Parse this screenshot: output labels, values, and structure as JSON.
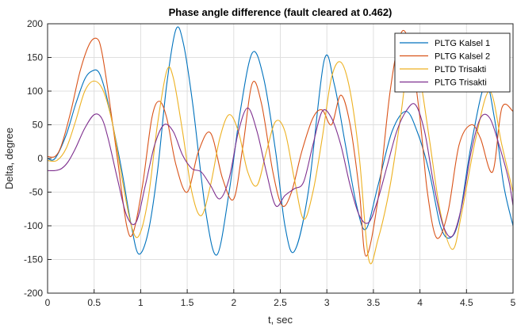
{
  "chart_data": {
    "type": "line",
    "title": "Phase angle difference (fault cleared at 0.462)",
    "xlabel": "t, sec",
    "ylabel": "Delta, degree",
    "xlim": [
      0,
      5
    ],
    "ylim": [
      -200,
      200
    ],
    "xticks": [
      0,
      0.5,
      1,
      1.5,
      2,
      2.5,
      3,
      3.5,
      4,
      4.5,
      5
    ],
    "xtick_labels": [
      "0",
      "0.5",
      "1",
      "1.5",
      "2",
      "2.5",
      "3",
      "3.5",
      "4",
      "4.5",
      "5"
    ],
    "yticks": [
      -200,
      -150,
      -100,
      -50,
      0,
      50,
      100,
      150,
      200
    ],
    "ytick_labels": [
      "-200",
      "-150",
      "-100",
      "-50",
      "0",
      "50",
      "100",
      "150",
      "200"
    ],
    "grid": true,
    "legend_position": "top-right",
    "series": [
      {
        "name": "PLTG Kalsel 1",
        "color": "#0072BD",
        "x": [
          0,
          0.08,
          0.2,
          0.3,
          0.4,
          0.48,
          0.55,
          0.62,
          0.7,
          0.8,
          0.9,
          0.98,
          1.08,
          1.18,
          1.28,
          1.38,
          1.46,
          1.56,
          1.7,
          1.82,
          1.95,
          2.07,
          2.2,
          2.32,
          2.45,
          2.55,
          2.65,
          2.8,
          2.97,
          3.08,
          3.2,
          3.32,
          3.42,
          3.55,
          3.7,
          3.85,
          3.97,
          4.1,
          4.22,
          4.32,
          4.42,
          4.55,
          4.7,
          4.8,
          4.9,
          5
        ],
        "y": [
          0,
          0,
          35,
          80,
          118,
          130,
          128,
          100,
          50,
          -20,
          -100,
          -142,
          -110,
          -20,
          110,
          192,
          170,
          80,
          -80,
          -143,
          -50,
          70,
          157,
          120,
          10,
          -100,
          -138,
          -50,
          145,
          110,
          20,
          -70,
          -105,
          -40,
          40,
          70,
          40,
          -20,
          -100,
          -118,
          -90,
          20,
          110,
          60,
          -40,
          -100
        ]
      },
      {
        "name": "PLTG Kalsel 2",
        "color": "#D95319",
        "x": [
          0,
          0.08,
          0.15,
          0.25,
          0.35,
          0.45,
          0.53,
          0.58,
          0.65,
          0.75,
          0.85,
          0.92,
          1.02,
          1.12,
          1.2,
          1.28,
          1.38,
          1.5,
          1.62,
          1.75,
          1.88,
          2.0,
          2.1,
          2.2,
          2.3,
          2.42,
          2.52,
          2.62,
          2.73,
          2.85,
          2.95,
          3.05,
          3.15,
          3.25,
          3.35,
          3.42,
          3.55,
          3.68,
          3.8,
          3.9,
          4.0,
          4.08,
          4.18,
          4.3,
          4.42,
          4.55,
          4.65,
          4.78,
          4.88,
          5
        ],
        "y": [
          3,
          3,
          20,
          70,
          130,
          170,
          178,
          160,
          100,
          0,
          -100,
          -110,
          -40,
          60,
          85,
          60,
          -10,
          -50,
          10,
          38,
          -30,
          -60,
          20,
          112,
          80,
          -20,
          -70,
          -50,
          10,
          60,
          72,
          50,
          94,
          50,
          -50,
          -145,
          -60,
          100,
          187,
          160,
          60,
          -50,
          -118,
          -80,
          20,
          50,
          30,
          -20,
          75,
          70
        ]
      },
      {
        "name": "PLTD Trisakti",
        "color": "#EDB120",
        "x": [
          0,
          0.1,
          0.2,
          0.3,
          0.4,
          0.5,
          0.6,
          0.7,
          0.8,
          0.9,
          0.98,
          1.08,
          1.18,
          1.28,
          1.35,
          1.45,
          1.55,
          1.65,
          1.75,
          1.85,
          1.95,
          2.05,
          2.15,
          2.25,
          2.35,
          2.45,
          2.55,
          2.65,
          2.75,
          2.85,
          2.95,
          3.05,
          3.15,
          3.25,
          3.35,
          3.45,
          3.55,
          3.68,
          3.8,
          3.9,
          4.0,
          4.1,
          4.22,
          4.35,
          4.45,
          4.6,
          4.75,
          4.88,
          5
        ],
        "y": [
          -3,
          -3,
          15,
          55,
          100,
          115,
          100,
          50,
          -30,
          -100,
          -115,
          -60,
          50,
          130,
          120,
          40,
          -50,
          -85,
          -40,
          30,
          65,
          40,
          -20,
          -40,
          10,
          55,
          40,
          -30,
          -90,
          -50,
          30,
          120,
          143,
          100,
          0,
          -150,
          -120,
          -40,
          70,
          170,
          120,
          30,
          -80,
          -135,
          -80,
          30,
          100,
          20,
          -50
        ]
      },
      {
        "name": "PLTG Trisakti",
        "color": "#7E2F8E",
        "x": [
          0,
          0.08,
          0.15,
          0.22,
          0.3,
          0.4,
          0.5,
          0.58,
          0.65,
          0.75,
          0.85,
          0.95,
          1.05,
          1.15,
          1.25,
          1.35,
          1.45,
          1.55,
          1.65,
          1.75,
          1.85,
          1.95,
          2.05,
          2.15,
          2.25,
          2.35,
          2.45,
          2.55,
          2.65,
          2.75,
          2.85,
          2.95,
          3.05,
          3.15,
          3.25,
          3.35,
          3.45,
          3.55,
          3.65,
          3.75,
          3.85,
          3.95,
          4.05,
          4.15,
          4.25,
          4.35,
          4.45,
          4.55,
          4.65,
          4.75,
          4.85,
          4.95,
          5
        ],
        "y": [
          -18,
          -18,
          -15,
          -5,
          15,
          45,
          65,
          60,
          30,
          -30,
          -85,
          -95,
          -40,
          20,
          50,
          40,
          5,
          -15,
          -20,
          -40,
          -60,
          -30,
          40,
          75,
          40,
          -20,
          -70,
          -55,
          -45,
          -35,
          20,
          70,
          60,
          20,
          -40,
          -85,
          -95,
          -60,
          -10,
          40,
          70,
          80,
          40,
          -40,
          -100,
          -115,
          -70,
          10,
          60,
          60,
          20,
          -30,
          -70
        ]
      }
    ]
  }
}
